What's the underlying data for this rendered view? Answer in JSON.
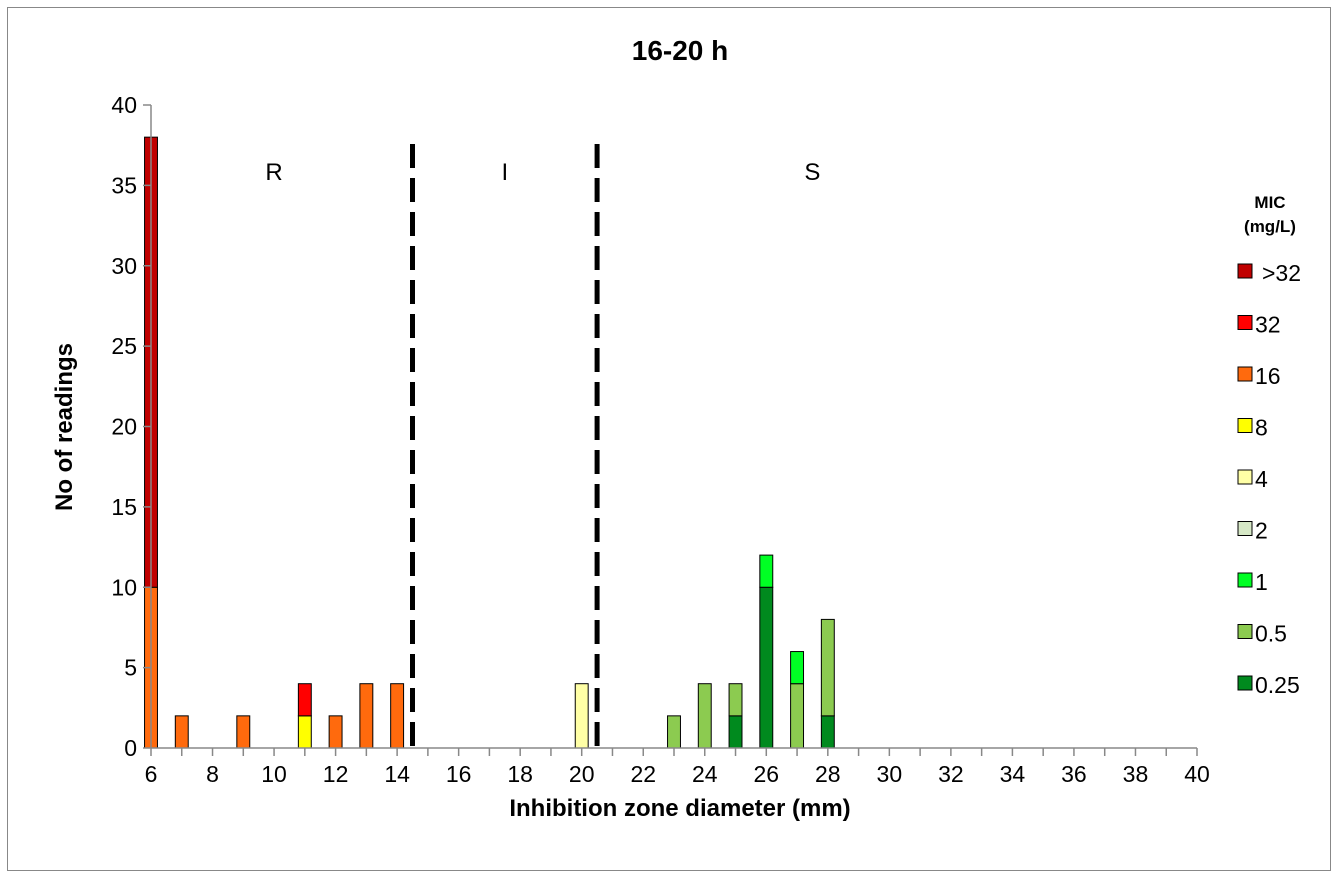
{
  "chart_data": {
    "type": "bar",
    "stacked": true,
    "title": "16-20 h",
    "xlabel": "Inhibition zone diameter (mm)",
    "ylabel": "No of readings",
    "xlim": [
      6,
      40
    ],
    "ylim": [
      0,
      40
    ],
    "x_ticks": [
      6,
      8,
      10,
      12,
      14,
      16,
      18,
      20,
      22,
      24,
      26,
      28,
      30,
      32,
      34,
      36,
      38,
      40
    ],
    "y_ticks": [
      0,
      5,
      10,
      15,
      20,
      25,
      30,
      35,
      40
    ],
    "legend": {
      "title": [
        "MIC",
        "(mg/L)"
      ],
      "placement": "right",
      "entries": [
        ">32",
        "32",
        "16",
        "8",
        "4",
        "2",
        "1",
        "0.5",
        "0.25"
      ]
    },
    "series": [
      {
        "name": ">32",
        "color": "#C00000",
        "points": [
          {
            "x": 6,
            "y": 28
          }
        ]
      },
      {
        "name": "32",
        "color": "#FF0000",
        "points": [
          {
            "x": 11,
            "y": 2
          }
        ]
      },
      {
        "name": "16",
        "color": "#FF6A0D",
        "points": [
          {
            "x": 6,
            "y": 10
          },
          {
            "x": 7,
            "y": 2
          },
          {
            "x": 9,
            "y": 2
          },
          {
            "x": 12,
            "y": 2
          },
          {
            "x": 13,
            "y": 4
          },
          {
            "x": 14,
            "y": 4
          }
        ]
      },
      {
        "name": "8",
        "color": "#FFFF00",
        "points": [
          {
            "x": 11,
            "y": 2
          }
        ]
      },
      {
        "name": "4",
        "color": "#FFFFA6",
        "points": [
          {
            "x": 20,
            "y": 4
          }
        ]
      },
      {
        "name": "2",
        "color": "#D6E8C6",
        "points": []
      },
      {
        "name": "1",
        "color": "#00FF24",
        "points": [
          {
            "x": 26,
            "y": 2
          },
          {
            "x": 27,
            "y": 2
          }
        ]
      },
      {
        "name": "0.5",
        "color": "#8CCB50",
        "points": [
          {
            "x": 23,
            "y": 2
          },
          {
            "x": 24,
            "y": 4
          },
          {
            "x": 25,
            "y": 2
          },
          {
            "x": 27,
            "y": 4
          },
          {
            "x": 28,
            "y": 6
          }
        ]
      },
      {
        "name": "0.25",
        "color": "#008A1E",
        "points": [
          {
            "x": 25,
            "y": 2
          },
          {
            "x": 26,
            "y": 10
          },
          {
            "x": 28,
            "y": 2
          }
        ]
      }
    ],
    "stack_order": [
      "0.25",
      "0.5",
      "1",
      "2",
      "4",
      "8",
      "16",
      "32",
      ">32"
    ],
    "breakpoint_lines": [
      14.5,
      20.5
    ],
    "regions": [
      {
        "label": "R",
        "x": 10
      },
      {
        "label": "I",
        "x": 17.5
      },
      {
        "label": "S",
        "x": 27.5
      }
    ]
  }
}
